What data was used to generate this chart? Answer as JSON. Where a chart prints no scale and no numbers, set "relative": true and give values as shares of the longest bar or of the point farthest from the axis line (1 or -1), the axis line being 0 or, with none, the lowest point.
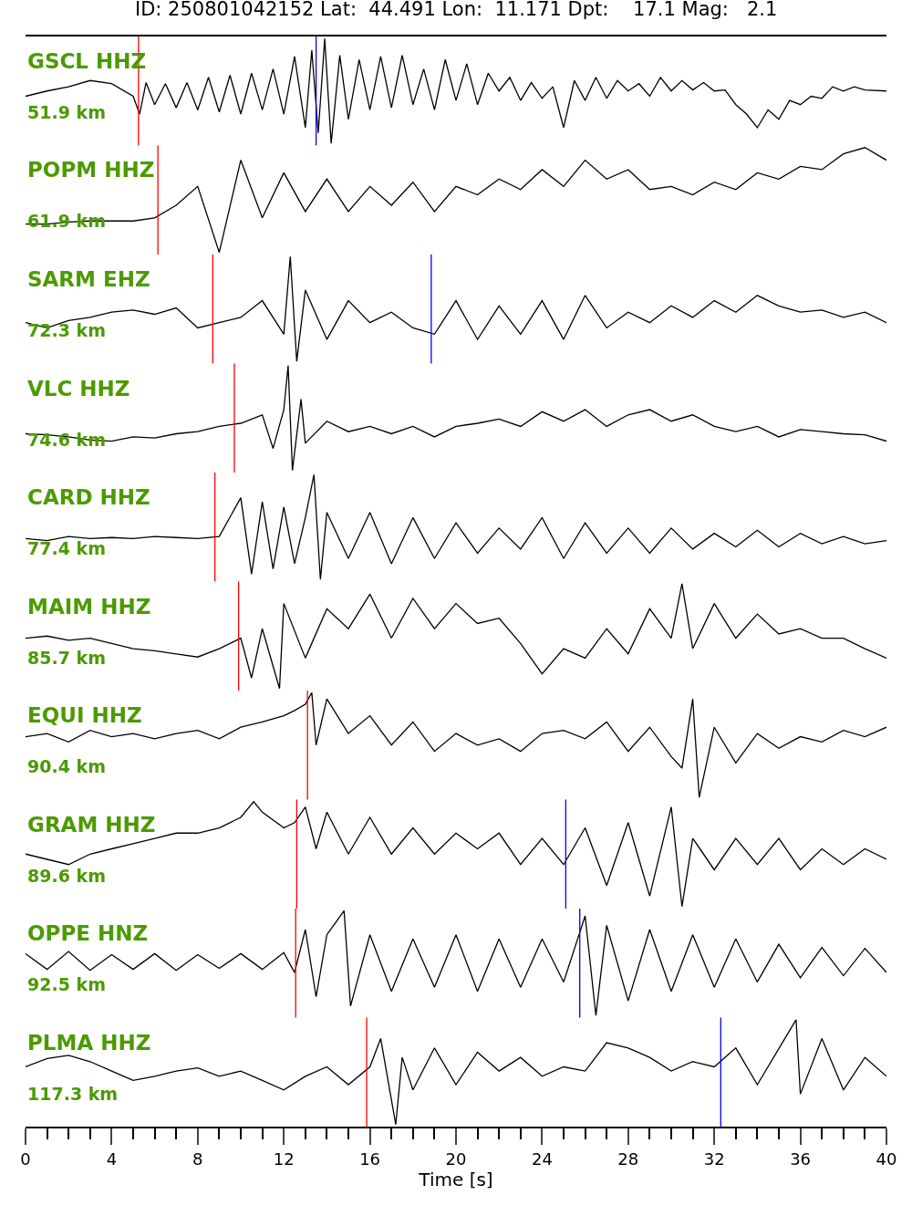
{
  "chart_data": [
    {
      "type": "line",
      "title": "ID: 250801042152 Lat:  44.491 Lon:  11.171 Dpt:    17.1 Mag:   2.1",
      "subtitle": "GSCL HHZ",
      "annotations": [
        "51.9 km"
      ],
      "relative": true,
      "xlim": [
        0,
        40
      ],
      "tick_labels": false,
      "x": [
        0,
        1,
        2,
        3,
        4,
        5,
        5.3,
        5.6,
        6,
        6.5,
        7,
        7.5,
        8,
        8.5,
        9,
        9.5,
        10,
        10.5,
        11,
        11.5,
        12,
        12.5,
        13,
        13.3,
        13.6,
        13.9,
        14.2,
        14.6,
        15,
        15.5,
        16,
        16.5,
        17,
        17.5,
        18,
        18.5,
        19,
        19.5,
        20,
        20.5,
        21,
        21.5,
        22,
        22.5,
        23,
        23.5,
        24,
        24.5,
        25,
        25.5,
        26,
        26.5,
        27,
        27.5,
        28,
        28.5,
        29,
        29.5,
        30,
        30.5,
        31,
        31.5,
        32,
        32.5,
        33,
        33.5,
        34,
        34.5,
        35,
        35.5,
        36,
        36.5,
        37,
        37.5,
        38,
        38.5,
        39,
        40
      ],
      "series": [
        {
          "color": "#000000",
          "values": [
            0.45,
            0.5,
            0.54,
            0.6,
            0.57,
            0.45,
            0.28,
            0.58,
            0.37,
            0.57,
            0.34,
            0.58,
            0.32,
            0.63,
            0.3,
            0.65,
            0.28,
            0.67,
            0.32,
            0.71,
            0.28,
            0.83,
            0.15,
            0.89,
            0.1,
            1,
            0,
            0.84,
            0.23,
            0.8,
            0.32,
            0.83,
            0.34,
            0.84,
            0.37,
            0.71,
            0.32,
            0.8,
            0.41,
            0.76,
            0.37,
            0.67,
            0.5,
            0.63,
            0.41,
            0.58,
            0.43,
            0.54,
            0.15,
            0.6,
            0.41,
            0.63,
            0.43,
            0.6,
            0.5,
            0.57,
            0.45,
            0.63,
            0.5,
            0.6,
            0.51,
            0.58,
            0.5,
            0.51,
            0.37,
            0.28,
            0.15,
            0.32,
            0.23,
            0.41,
            0.37,
            0.45,
            0.43,
            0.54,
            0.5,
            0.54,
            0.51,
            0.5
          ]
        }
      ],
      "ref_lines": [
        {
          "axis": "x",
          "value": 5.25,
          "color": "#ff0000"
        },
        {
          "axis": "x",
          "value": 13.5,
          "color": "#0000ff"
        }
      ]
    },
    {
      "type": "line",
      "subtitle": "POPM HHZ",
      "annotations": [
        "61.9 km"
      ],
      "relative": true,
      "xlim": [
        0,
        40
      ],
      "tick_labels": false,
      "x": [
        0,
        1,
        2,
        3,
        4,
        5,
        6,
        7,
        8,
        9,
        10,
        11,
        12,
        13,
        14,
        15,
        16,
        17,
        18,
        19,
        20,
        21,
        22,
        23,
        24,
        25,
        26,
        27,
        28,
        29,
        30,
        31,
        32,
        33,
        34,
        35,
        36,
        37,
        38,
        39,
        40
      ],
      "series": [
        {
          "color": "#000000",
          "values": [
            0.27,
            0.27,
            0.29,
            0.3,
            0.3,
            0.3,
            0.33,
            0.45,
            0.63,
            0,
            0.88,
            0.33,
            0.76,
            0.39,
            0.7,
            0.39,
            0.63,
            0.45,
            0.67,
            0.39,
            0.63,
            0.55,
            0.7,
            0.6,
            0.79,
            0.63,
            0.88,
            0.7,
            0.79,
            0.6,
            0.63,
            0.55,
            0.67,
            0.6,
            0.76,
            0.7,
            0.82,
            0.79,
            0.94,
            1,
            0.88
          ]
        }
      ],
      "ref_lines": [
        {
          "axis": "x",
          "value": 6.15,
          "color": "#ff0000"
        }
      ]
    },
    {
      "type": "line",
      "subtitle": "SARM EHZ",
      "annotations": [
        "72.3 km"
      ],
      "relative": true,
      "xlim": [
        0,
        40
      ],
      "tick_labels": false,
      "x": [
        0,
        1,
        2,
        3,
        4,
        5,
        6,
        7,
        8,
        9,
        10,
        11,
        12,
        12.3,
        12.6,
        13,
        14,
        15,
        16,
        17,
        18,
        19,
        20,
        21,
        22,
        23,
        24,
        25,
        26,
        27,
        28,
        29,
        30,
        31,
        32,
        33,
        34,
        35,
        36,
        37,
        38,
        39,
        40
      ],
      "series": [
        {
          "color": "#000000",
          "values": [
            0.37,
            0.32,
            0.39,
            0.42,
            0.47,
            0.49,
            0.45,
            0.51,
            0.32,
            0.37,
            0.42,
            0.58,
            0.26,
            1,
            0,
            0.68,
            0.21,
            0.58,
            0.37,
            0.47,
            0.32,
            0.26,
            0.58,
            0.21,
            0.53,
            0.26,
            0.58,
            0.21,
            0.63,
            0.32,
            0.47,
            0.37,
            0.53,
            0.42,
            0.58,
            0.47,
            0.63,
            0.53,
            0.47,
            0.49,
            0.42,
            0.47,
            0.37
          ]
        }
      ],
      "ref_lines": [
        {
          "axis": "x",
          "value": 8.7,
          "color": "#ff0000"
        },
        {
          "axis": "x",
          "value": 18.85,
          "color": "#0000ff"
        }
      ]
    },
    {
      "type": "line",
      "subtitle": "VLC HHZ",
      "annotations": [
        "74.6 km"
      ],
      "relative": true,
      "xlim": [
        0,
        40
      ],
      "tick_labels": false,
      "x": [
        0,
        1,
        2,
        3,
        4,
        5,
        6,
        7,
        8,
        9,
        10,
        11,
        11.5,
        12,
        12.2,
        12.4,
        12.8,
        13,
        14,
        15,
        16,
        17,
        18,
        19,
        20,
        21,
        22,
        23,
        24,
        25,
        26,
        27,
        28,
        29,
        30,
        31,
        32,
        33,
        34,
        35,
        36,
        37,
        38,
        39,
        40
      ],
      "series": [
        {
          "color": "#000000",
          "values": [
            0.35,
            0.34,
            0.32,
            0.29,
            0.28,
            0.32,
            0.31,
            0.35,
            0.37,
            0.42,
            0.45,
            0.53,
            0.21,
            0.58,
            1,
            0,
            0.68,
            0.26,
            0.47,
            0.37,
            0.42,
            0.35,
            0.42,
            0.32,
            0.42,
            0.45,
            0.49,
            0.42,
            0.56,
            0.47,
            0.58,
            0.42,
            0.53,
            0.58,
            0.47,
            0.53,
            0.42,
            0.37,
            0.42,
            0.32,
            0.39,
            0.37,
            0.35,
            0.34,
            0.28
          ]
        }
      ],
      "ref_lines": [
        {
          "axis": "x",
          "value": 9.7,
          "color": "#ff0000"
        }
      ]
    },
    {
      "type": "line",
      "subtitle": "CARD HHZ",
      "annotations": [
        "77.4 km"
      ],
      "relative": true,
      "xlim": [
        0,
        40
      ],
      "tick_labels": false,
      "x": [
        0,
        1,
        2,
        3,
        4,
        5,
        6,
        7,
        8,
        9,
        10,
        10.5,
        11,
        11.5,
        12,
        12.5,
        13,
        13.4,
        13.7,
        14,
        15,
        16,
        17,
        18,
        19,
        20,
        21,
        22,
        23,
        24,
        25,
        26,
        27,
        28,
        29,
        30,
        31,
        32,
        33,
        34,
        35,
        36,
        37,
        38,
        39,
        40
      ],
      "series": [
        {
          "color": "#000000",
          "values": [
            0.39,
            0.37,
            0.41,
            0.39,
            0.4,
            0.39,
            0.41,
            0.4,
            0.39,
            0.41,
            0.78,
            0.05,
            0.74,
            0.1,
            0.69,
            0.15,
            0.59,
            1,
            0,
            0.64,
            0.2,
            0.64,
            0.15,
            0.59,
            0.2,
            0.54,
            0.25,
            0.49,
            0.29,
            0.59,
            0.2,
            0.54,
            0.25,
            0.49,
            0.25,
            0.49,
            0.29,
            0.44,
            0.31,
            0.47,
            0.31,
            0.44,
            0.34,
            0.41,
            0.34,
            0.37
          ]
        }
      ],
      "ref_lines": [
        {
          "axis": "x",
          "value": 8.8,
          "color": "#ff0000"
        }
      ]
    },
    {
      "type": "line",
      "subtitle": "MAIM HHZ",
      "annotations": [
        "85.7 km"
      ],
      "relative": true,
      "xlim": [
        0,
        40
      ],
      "tick_labels": false,
      "x": [
        0,
        1,
        2,
        3,
        4,
        5,
        6,
        7,
        8,
        9,
        10,
        10.5,
        11,
        11.8,
        12,
        13,
        14,
        15,
        16,
        17,
        18,
        19,
        20,
        21,
        22,
        23,
        24,
        25,
        26,
        27,
        28,
        29,
        30,
        30.5,
        31,
        32,
        33,
        34,
        35,
        36,
        37,
        38,
        39,
        40
      ],
      "series": [
        {
          "color": "#000000",
          "values": [
            0.48,
            0.5,
            0.46,
            0.48,
            0.43,
            0.38,
            0.36,
            0.33,
            0.3,
            0.38,
            0.48,
            0.1,
            0.57,
            0,
            0.81,
            0.29,
            0.76,
            0.57,
            0.9,
            0.48,
            0.86,
            0.57,
            0.81,
            0.62,
            0.67,
            0.43,
            0.14,
            0.38,
            0.29,
            0.57,
            0.33,
            0.76,
            0.48,
            1,
            0.38,
            0.81,
            0.48,
            0.71,
            0.52,
            0.57,
            0.48,
            0.48,
            0.38,
            0.29
          ]
        }
      ],
      "ref_lines": [
        {
          "axis": "x",
          "value": 9.9,
          "color": "#ff0000"
        }
      ]
    },
    {
      "type": "line",
      "subtitle": "EQUI HHZ",
      "annotations": [
        "90.4 km"
      ],
      "relative": true,
      "xlim": [
        0,
        40
      ],
      "tick_labels": false,
      "x": [
        0,
        1,
        2,
        3,
        4,
        5,
        6,
        7,
        8,
        9,
        10,
        11,
        12,
        12.5,
        13,
        13.3,
        13.5,
        14,
        15,
        16,
        17,
        18,
        19,
        20,
        21,
        22,
        23,
        24,
        25,
        26,
        27,
        28,
        29,
        30,
        30.5,
        31,
        31.3,
        32,
        33,
        34,
        35,
        36,
        37,
        38,
        39,
        40
      ],
      "series": [
        {
          "color": "#000000",
          "values": [
            0.58,
            0.61,
            0.53,
            0.64,
            0.58,
            0.61,
            0.56,
            0.61,
            0.64,
            0.56,
            0.67,
            0.72,
            0.78,
            0.83,
            0.89,
            1,
            0.5,
            0.94,
            0.61,
            0.78,
            0.5,
            0.72,
            0.44,
            0.61,
            0.5,
            0.56,
            0.44,
            0.61,
            0.64,
            0.56,
            0.72,
            0.44,
            0.67,
            0.39,
            0.28,
            0.94,
            0,
            0.67,
            0.33,
            0.61,
            0.47,
            0.58,
            0.53,
            0.64,
            0.58,
            0.67
          ]
        }
      ],
      "ref_lines": [
        {
          "axis": "x",
          "value": 13.1,
          "color": "#ff0000"
        }
      ]
    },
    {
      "type": "line",
      "subtitle": "GRAM HHZ",
      "annotations": [
        "89.6 km"
      ],
      "relative": true,
      "xlim": [
        0,
        40
      ],
      "tick_labels": false,
      "x": [
        0,
        1,
        2,
        3,
        4,
        5,
        6,
        7,
        8,
        9,
        10,
        10.6,
        11,
        12,
        12.5,
        13,
        13.5,
        14,
        15,
        16,
        17,
        18,
        19,
        20,
        21,
        22,
        23,
        24,
        25,
        26,
        27,
        28,
        29,
        30,
        30.5,
        31,
        32,
        33,
        34,
        35,
        36,
        37,
        38,
        39,
        40
      ],
      "series": [
        {
          "color": "#000000",
          "values": [
            0.5,
            0.45,
            0.4,
            0.5,
            0.55,
            0.6,
            0.65,
            0.7,
            0.7,
            0.75,
            0.85,
            1,
            0.9,
            0.75,
            0.8,
            0.95,
            0.55,
            0.9,
            0.5,
            0.85,
            0.5,
            0.75,
            0.5,
            0.7,
            0.55,
            0.7,
            0.4,
            0.65,
            0.4,
            0.75,
            0.2,
            0.8,
            0.1,
            0.95,
            0,
            0.65,
            0.35,
            0.65,
            0.4,
            0.65,
            0.35,
            0.55,
            0.4,
            0.55,
            0.45
          ]
        }
      ],
      "ref_lines": [
        {
          "axis": "x",
          "value": 12.6,
          "color": "#ff0000"
        },
        {
          "axis": "x",
          "value": 25.1,
          "color": "#0000ff"
        }
      ]
    },
    {
      "type": "line",
      "subtitle": "OPPE HNZ",
      "annotations": [
        "92.5 km"
      ],
      "relative": true,
      "xlim": [
        0,
        40
      ],
      "tick_labels": false,
      "x": [
        0,
        1,
        2,
        3,
        4,
        5,
        6,
        7,
        8,
        9,
        10,
        11,
        12,
        12.5,
        13,
        13.5,
        14,
        14.8,
        15.1,
        16,
        17,
        18,
        19,
        20,
        21,
        22,
        23,
        24,
        25,
        26,
        26.5,
        27,
        28,
        29,
        30,
        31,
        32,
        33,
        34,
        35,
        36,
        37,
        38,
        39,
        40
      ],
      "series": [
        {
          "color": "#000000",
          "values": [
            0.59,
            0.44,
            0.61,
            0.43,
            0.58,
            0.44,
            0.59,
            0.43,
            0.58,
            0.45,
            0.59,
            0.44,
            0.6,
            0.41,
            0.82,
            0.18,
            0.77,
            1,
            0.09,
            0.77,
            0.23,
            0.73,
            0.27,
            0.77,
            0.23,
            0.73,
            0.27,
            0.73,
            0.32,
            0.95,
            0,
            0.86,
            0.14,
            0.82,
            0.23,
            0.77,
            0.27,
            0.73,
            0.32,
            0.68,
            0.36,
            0.65,
            0.38,
            0.64,
            0.41
          ]
        }
      ],
      "ref_lines": [
        {
          "axis": "x",
          "value": 12.55,
          "color": "#ff0000"
        },
        {
          "axis": "x",
          "value": 25.75,
          "color": "#0000ff"
        }
      ]
    },
    {
      "type": "line",
      "subtitle": "PLMA HHZ",
      "annotations": [
        "117.3 km"
      ],
      "relative": true,
      "xlim": [
        0,
        40
      ],
      "tick_labels": "x",
      "xlabel": "Time [s]",
      "xticks": [
        0,
        {
          "value": 1,
          "label": null
        },
        {
          "value": 2,
          "label": null
        },
        {
          "value": 3,
          "label": null
        },
        4,
        {
          "value": 5,
          "label": null
        },
        {
          "value": 6,
          "label": null
        },
        {
          "value": 7,
          "label": null
        },
        8,
        {
          "value": 9,
          "label": null
        },
        {
          "value": 10,
          "label": null
        },
        {
          "value": 11,
          "label": null
        },
        12,
        {
          "value": 13,
          "label": null
        },
        {
          "value": 14,
          "label": null
        },
        {
          "value": 15,
          "label": null
        },
        16,
        {
          "value": 17,
          "label": null
        },
        {
          "value": 18,
          "label": null
        },
        {
          "value": 19,
          "label": null
        },
        20,
        {
          "value": 21,
          "label": null
        },
        {
          "value": 22,
          "label": null
        },
        {
          "value": 23,
          "label": null
        },
        24,
        {
          "value": 25,
          "label": null
        },
        {
          "value": 26,
          "label": null
        },
        {
          "value": 27,
          "label": null
        },
        28,
        {
          "value": 29,
          "label": null
        },
        {
          "value": 30,
          "label": null
        },
        {
          "value": 31,
          "label": null
        },
        32,
        {
          "value": 33,
          "label": null
        },
        {
          "value": 34,
          "label": null
        },
        {
          "value": 35,
          "label": null
        },
        36,
        {
          "value": 37,
          "label": null
        },
        {
          "value": 38,
          "label": null
        },
        {
          "value": 39,
          "label": null
        },
        40
      ],
      "x": [
        0,
        1,
        2,
        3,
        4,
        5,
        6,
        7,
        8,
        9,
        10,
        11,
        12,
        13,
        14,
        15,
        16,
        16.5,
        17.2,
        17.5,
        18,
        19,
        20,
        21,
        22,
        23,
        24,
        25,
        26,
        27,
        28,
        29,
        30,
        31,
        32,
        33,
        34,
        35.8,
        36,
        37,
        38,
        39,
        40
      ],
      "series": [
        {
          "color": "#000000",
          "values": [
            0.55,
            0.63,
            0.66,
            0.6,
            0.51,
            0.42,
            0.46,
            0.51,
            0.54,
            0.46,
            0.51,
            0.42,
            0.33,
            0.46,
            0.55,
            0.38,
            0.55,
            0.82,
            0,
            0.64,
            0.33,
            0.73,
            0.38,
            0.69,
            0.51,
            0.64,
            0.46,
            0.55,
            0.51,
            0.78,
            0.73,
            0.64,
            0.51,
            0.6,
            0.55,
            0.73,
            0.38,
            1,
            0.29,
            0.82,
            0.33,
            0.64,
            0.46
          ]
        }
      ],
      "ref_lines": [
        {
          "axis": "x",
          "value": 15.85,
          "color": "#ff0000"
        },
        {
          "axis": "x",
          "value": 32.3,
          "color": "#0000ff"
        }
      ]
    }
  ]
}
